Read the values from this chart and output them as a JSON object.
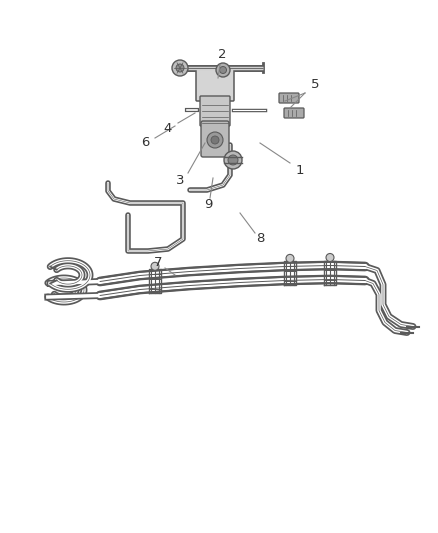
{
  "background_color": "#ffffff",
  "line_color": "#5a5a5a",
  "label_color": "#333333",
  "fig_width": 4.38,
  "fig_height": 5.33,
  "dpi": 100,
  "label_fontsize": 9.5
}
